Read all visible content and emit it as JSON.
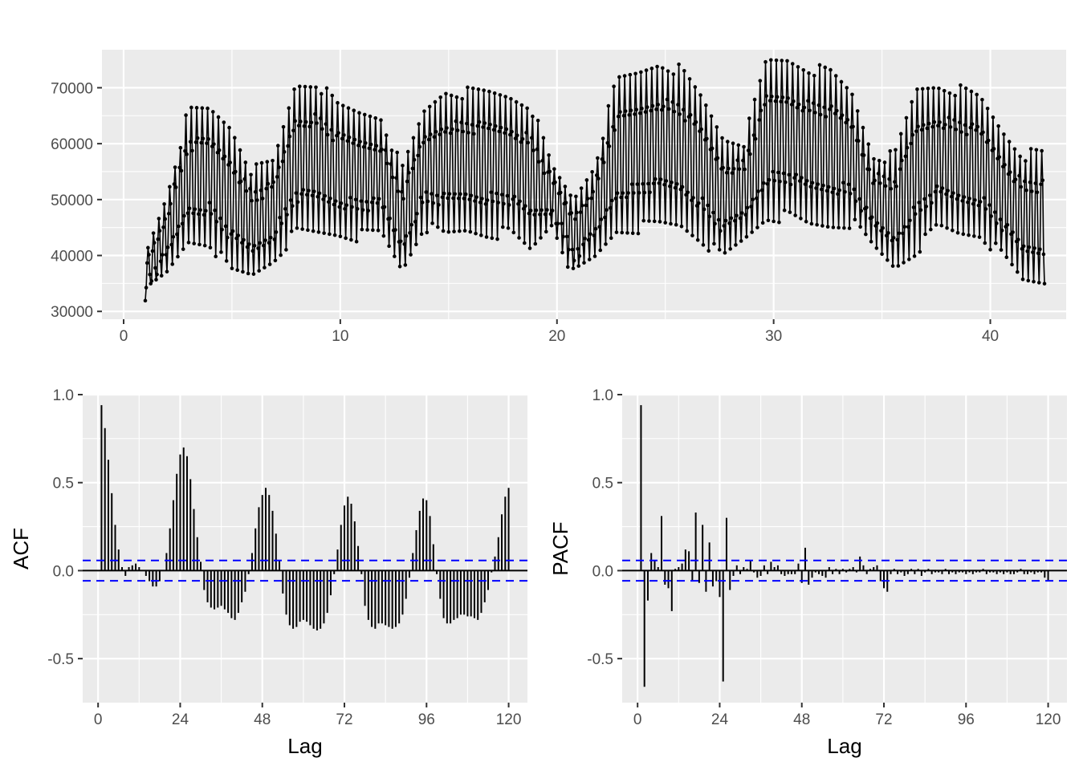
{
  "chart_data": [
    {
      "type": "line",
      "title": "",
      "xlabel": "",
      "ylabel": "",
      "xlim": [
        -1,
        43.5
      ],
      "ylim": [
        28600,
        76800
      ],
      "x_ticks": [
        0,
        10,
        20,
        30,
        40
      ],
      "y_ticks": [
        30000,
        40000,
        50000,
        60000,
        70000
      ],
      "x_tick_labels": [
        "0",
        "10",
        "20",
        "30",
        "40"
      ],
      "y_tick_labels": [
        "30000",
        "40000",
        "50000",
        "60000",
        "70000"
      ],
      "grid": true,
      "markers": true,
      "series": [
        {
          "description": "hourly series, 7-day weekly cycles with 24-hour oscillation, daily troughs and peaks per day (x in weeks, starting near 1.0, ending near 42.5)",
          "x_start": 1.0,
          "x_end": 42.5,
          "samples_per_unit": 24,
          "daily_low": [
            33000,
            36500,
            42500,
            42500,
            37000,
            36500,
            39500,
            44000,
            44000,
            44000,
            43500,
            44000,
            37500,
            45500,
            43500,
            44500,
            44000,
            44000,
            41000,
            46000,
            36500,
            39500,
            44500,
            45000,
            45500,
            45500,
            43000,
            39500,
            43000,
            47000,
            47000,
            45500,
            45500,
            46000,
            41500,
            38000,
            41000,
            45000,
            44000,
            44000,
            40000,
            35500
          ],
          "daily_high": [
            40000,
            51000,
            65500,
            66000,
            63000,
            55000,
            56500,
            70500,
            71000,
            66500,
            65500,
            65000,
            55000,
            65500,
            69500,
            69000,
            69000,
            68500,
            67000,
            55500,
            50000,
            56500,
            71000,
            72500,
            74500,
            73000,
            68000,
            61000,
            60500,
            74500,
            75000,
            73500,
            72500,
            69000,
            58000,
            57500,
            69500,
            70500,
            69500,
            68000,
            62500,
            58000
          ]
        }
      ]
    },
    {
      "type": "bar",
      "title": "",
      "xlabel": "Lag",
      "ylabel": "ACF",
      "xlim": [
        -4.5,
        125.5
      ],
      "ylim": [
        -0.75,
        1.0
      ],
      "x_ticks": [
        0,
        24,
        48,
        72,
        96,
        120
      ],
      "x_tick_labels": [
        "0",
        "24",
        "48",
        "72",
        "96",
        "120"
      ],
      "y_ticks": [
        -0.5,
        0.0,
        0.5,
        1.0
      ],
      "y_tick_labels": [
        "-0.5",
        "0.0",
        "0.5",
        "1.0"
      ],
      "conf_limit": 0.058,
      "x": [
        1,
        2,
        3,
        4,
        5,
        6,
        7,
        8,
        9,
        10,
        11,
        12,
        13,
        14,
        15,
        16,
        17,
        18,
        19,
        20,
        21,
        22,
        23,
        24,
        25,
        26,
        27,
        28,
        29,
        30,
        31,
        32,
        33,
        34,
        35,
        36,
        37,
        38,
        39,
        40,
        41,
        42,
        43,
        44,
        45,
        46,
        47,
        48,
        49,
        50,
        51,
        52,
        53,
        54,
        55,
        56,
        57,
        58,
        59,
        60,
        61,
        62,
        63,
        64,
        65,
        66,
        67,
        68,
        69,
        70,
        71,
        72,
        73,
        74,
        75,
        76,
        77,
        78,
        79,
        80,
        81,
        82,
        83,
        84,
        85,
        86,
        87,
        88,
        89,
        90,
        91,
        92,
        93,
        94,
        95,
        96,
        97,
        98,
        99,
        100,
        101,
        102,
        103,
        104,
        105,
        106,
        107,
        108,
        109,
        110,
        111,
        112,
        113,
        114,
        115,
        116,
        117,
        118,
        119,
        120
      ],
      "values": [
        0.94,
        0.81,
        0.63,
        0.44,
        0.26,
        0.12,
        0.02,
        -0.03,
        0.02,
        0.03,
        0.04,
        0.02,
        0.0,
        -0.03,
        -0.06,
        -0.09,
        -0.09,
        -0.06,
        0.0,
        0.1,
        0.24,
        0.4,
        0.55,
        0.66,
        0.7,
        0.65,
        0.52,
        0.35,
        0.19,
        0.05,
        -0.11,
        -0.18,
        -0.21,
        -0.22,
        -0.21,
        -0.2,
        -0.22,
        -0.24,
        -0.27,
        -0.28,
        -0.24,
        -0.18,
        -0.12,
        -0.02,
        0.1,
        0.24,
        0.36,
        0.43,
        0.47,
        0.43,
        0.34,
        0.21,
        0.06,
        -0.13,
        -0.25,
        -0.31,
        -0.33,
        -0.32,
        -0.29,
        -0.28,
        -0.29,
        -0.31,
        -0.33,
        -0.34,
        -0.33,
        -0.3,
        -0.24,
        -0.14,
        -0.02,
        0.12,
        0.26,
        0.37,
        0.42,
        0.38,
        0.28,
        0.14,
        -0.02,
        -0.2,
        -0.28,
        -0.32,
        -0.33,
        -0.3,
        -0.3,
        -0.31,
        -0.32,
        -0.33,
        -0.32,
        -0.3,
        -0.25,
        -0.16,
        -0.04,
        0.1,
        0.23,
        0.34,
        0.41,
        0.4,
        0.31,
        0.15,
        -0.02,
        -0.16,
        -0.27,
        -0.3,
        -0.3,
        -0.28,
        -0.27,
        -0.25,
        -0.25,
        -0.26,
        -0.26,
        -0.27,
        -0.28,
        -0.24,
        -0.18,
        -0.11,
        -0.01,
        0.08,
        0.19,
        0.32,
        0.42,
        0.47
      ]
    },
    {
      "type": "bar",
      "title": "",
      "xlabel": "Lag",
      "ylabel": "PACF",
      "xlim": [
        -4.5,
        125.5
      ],
      "ylim": [
        -0.75,
        1.0
      ],
      "x_ticks": [
        0,
        24,
        48,
        72,
        96,
        120
      ],
      "x_tick_labels": [
        "0",
        "24",
        "48",
        "72",
        "96",
        "120"
      ],
      "y_ticks": [
        -0.5,
        0.0,
        0.5,
        1.0
      ],
      "y_tick_labels": [
        "-0.5",
        "0.0",
        "0.5",
        "1.0"
      ],
      "conf_limit": 0.058,
      "x": [
        1,
        2,
        3,
        4,
        5,
        6,
        7,
        8,
        9,
        10,
        11,
        12,
        13,
        14,
        15,
        16,
        17,
        18,
        19,
        20,
        21,
        22,
        23,
        24,
        25,
        26,
        27,
        28,
        29,
        30,
        31,
        32,
        33,
        34,
        35,
        36,
        37,
        38,
        39,
        40,
        41,
        42,
        43,
        44,
        45,
        46,
        47,
        48,
        49,
        50,
        51,
        52,
        53,
        54,
        55,
        56,
        57,
        58,
        59,
        60,
        61,
        62,
        63,
        64,
        65,
        66,
        67,
        68,
        69,
        70,
        71,
        72,
        73,
        74,
        75,
        76,
        77,
        78,
        79,
        80,
        81,
        82,
        83,
        84,
        85,
        86,
        87,
        88,
        89,
        90,
        91,
        92,
        93,
        94,
        95,
        96,
        97,
        98,
        99,
        100,
        101,
        102,
        103,
        104,
        105,
        106,
        107,
        108,
        109,
        110,
        111,
        112,
        113,
        114,
        115,
        116,
        117,
        118,
        119,
        120
      ],
      "values": [
        0.94,
        -0.66,
        -0.17,
        0.1,
        0.06,
        0.02,
        0.31,
        -0.08,
        -0.1,
        -0.23,
        0.01,
        0.02,
        0.04,
        0.12,
        0.11,
        -0.06,
        0.33,
        -0.07,
        0.26,
        -0.12,
        0.16,
        -0.09,
        -0.06,
        -0.15,
        -0.63,
        0.3,
        -0.11,
        -0.03,
        0.03,
        -0.02,
        0.02,
        0.01,
        0.06,
        -0.01,
        -0.04,
        -0.03,
        0.03,
        -0.02,
        0.05,
        0.02,
        0.03,
        -0.02,
        -0.03,
        -0.02,
        -0.02,
        -0.02,
        0.04,
        -0.07,
        0.13,
        -0.08,
        -0.04,
        -0.01,
        -0.02,
        -0.03,
        -0.04,
        0.02,
        -0.02,
        0.01,
        -0.02,
        0.01,
        -0.01,
        0.01,
        0.02,
        -0.01,
        0.08,
        0.03,
        -0.02,
        0.01,
        0.02,
        0.03,
        -0.06,
        -0.1,
        -0.12,
        -0.02,
        0.01,
        -0.02,
        -0.01,
        -0.03,
        -0.02,
        0.01,
        -0.02,
        0.01,
        -0.03,
        -0.01,
        0.01,
        -0.02,
        -0.01,
        -0.01,
        -0.02,
        0.01,
        -0.02,
        -0.01,
        -0.02,
        -0.01,
        -0.01,
        -0.02,
        -0.01,
        -0.02,
        -0.01,
        -0.01,
        0.01,
        -0.02,
        -0.01,
        -0.01,
        -0.02,
        -0.01,
        -0.02,
        -0.01,
        -0.02,
        -0.02,
        -0.01,
        0.01,
        -0.02,
        -0.02,
        -0.01,
        -0.02,
        -0.01,
        -0.01,
        -0.04,
        -0.06
      ]
    }
  ]
}
